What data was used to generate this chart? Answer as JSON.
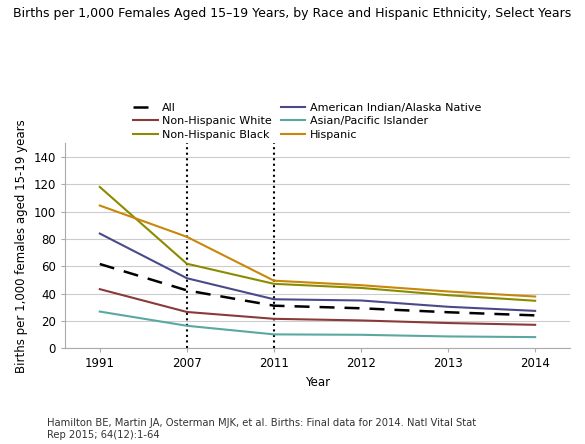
{
  "title": "Births per 1,000 Females Aged 15–19 Years, by Race and Hispanic Ethnicity, Select Years",
  "ylabel": "Births per 1,000 females aged 15-19 years",
  "xlabel": "Year",
  "footnote": "Hamilton BE, Martin JA, Osterman MJK, et al. Births: Final data for 2014. Natl Vital Stat\nRep 2015; 64(12):1-64",
  "years": [
    1991,
    2007,
    2011,
    2012,
    2013,
    2014
  ],
  "year_positions": [
    0,
    1,
    2,
    3,
    4,
    5
  ],
  "vline_positions": [
    1,
    2
  ],
  "series": {
    "All": {
      "color": "#000000",
      "linestyle": "dashed",
      "values": [
        61.8,
        42.5,
        31.3,
        29.4,
        26.5,
        24.2
      ]
    },
    "Non-Hispanic White": {
      "color": "#8b3a3a",
      "linestyle": "solid",
      "values": [
        43.4,
        26.7,
        21.7,
        20.5,
        18.6,
        17.3
      ]
    },
    "Non-Hispanic Black": {
      "color": "#8b8b00",
      "linestyle": "solid",
      "values": [
        118.2,
        62.0,
        47.3,
        44.3,
        39.0,
        34.9
      ]
    },
    "American Indian/Alaska Native": {
      "color": "#4a4a8a",
      "linestyle": "solid",
      "values": [
        84.1,
        51.4,
        36.0,
        35.1,
        30.5,
        27.5
      ]
    },
    "Asian/Pacific Islander": {
      "color": "#5ba8a0",
      "linestyle": "solid",
      "values": [
        27.0,
        16.6,
        10.3,
        10.0,
        8.8,
        8.3
      ]
    },
    "Hispanic": {
      "color": "#c8860a",
      "linestyle": "solid",
      "values": [
        104.6,
        81.7,
        49.6,
        46.3,
        41.7,
        38.0
      ]
    }
  },
  "legend_order": [
    "All",
    "Non-Hispanic White",
    "Non-Hispanic Black",
    "American Indian/Alaska Native",
    "Asian/Pacific Islander",
    "Hispanic"
  ],
  "ylim": [
    0,
    150
  ],
  "yticks": [
    0,
    20,
    40,
    60,
    80,
    100,
    120,
    140
  ],
  "background_color": "#ffffff",
  "grid_color": "#cccccc",
  "title_fontsize": 9,
  "axis_fontsize": 8.5,
  "legend_fontsize": 8,
  "tick_fontsize": 8.5
}
